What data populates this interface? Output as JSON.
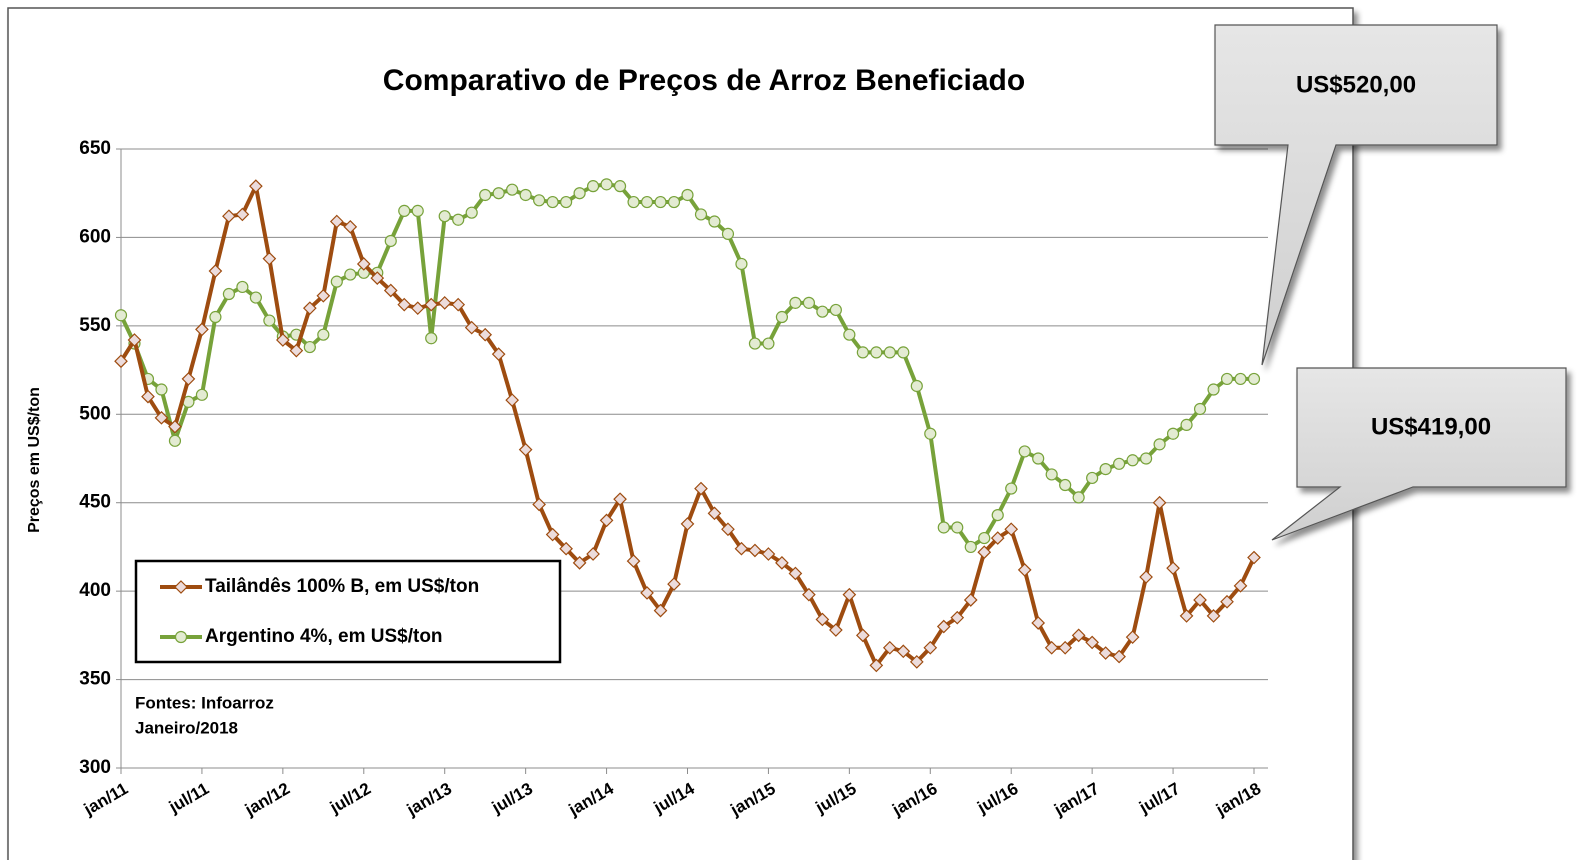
{
  "chart_data": {
    "type": "line",
    "title": "Comparativo de Preços de  Arroz Beneficiado",
    "y_label": "Preços em US$/ton",
    "categories": [
      "jan/11",
      null,
      null,
      null,
      null,
      null,
      "jul/11",
      null,
      null,
      null,
      null,
      null,
      "jan/12",
      null,
      null,
      null,
      null,
      null,
      "jul/12",
      null,
      null,
      null,
      null,
      null,
      "jan/13",
      null,
      null,
      null,
      null,
      null,
      "jul/13",
      null,
      null,
      null,
      null,
      null,
      "jan/14",
      null,
      null,
      null,
      null,
      null,
      "jul/14",
      null,
      null,
      null,
      null,
      null,
      "jan/15",
      null,
      null,
      null,
      null,
      null,
      "jul/15",
      null,
      null,
      null,
      null,
      null,
      "jan/16",
      null,
      null,
      null,
      null,
      null,
      "jul/16",
      null,
      null,
      null,
      null,
      null,
      "jan/17",
      null,
      null,
      null,
      null,
      null,
      "jul/17",
      null,
      null,
      null,
      null,
      null,
      "jan/18"
    ],
    "series": [
      {
        "name": "Tailândês 100% B, em US$/ton",
        "color": "#9e4c10",
        "marker": "diamond",
        "values": [
          530,
          542,
          510,
          498,
          493,
          520,
          548,
          581,
          612,
          613,
          629,
          588,
          542,
          536,
          560,
          567,
          609,
          606,
          585,
          577,
          570,
          562,
          560,
          562,
          563,
          562,
          549,
          545,
          534,
          508,
          480,
          449,
          432,
          424,
          416,
          421,
          440,
          452,
          417,
          399,
          389,
          404,
          438,
          458,
          444,
          435,
          424,
          423,
          421,
          416,
          410,
          398,
          384,
          378,
          398,
          375,
          358,
          368,
          366,
          360,
          368,
          380,
          385,
          395,
          422,
          430,
          435,
          412,
          382,
          368,
          368,
          375,
          371,
          365,
          363,
          374,
          408,
          450,
          413,
          386,
          395,
          386,
          394,
          403,
          419
        ]
      },
      {
        "name": "Argentino 4%, em US$/ton",
        "color": "#77a23a",
        "marker": "circle",
        "values": [
          556,
          540,
          520,
          514,
          485,
          507,
          511,
          555,
          568,
          572,
          566,
          553,
          544,
          545,
          538,
          545,
          575,
          579,
          580,
          580,
          598,
          615,
          615,
          543,
          612,
          610,
          614,
          624,
          625,
          627,
          624,
          621,
          620,
          620,
          625,
          629,
          630,
          629,
          620,
          620,
          620,
          620,
          624,
          613,
          609,
          602,
          585,
          540,
          540,
          555,
          563,
          563,
          558,
          559,
          545,
          535,
          535,
          535,
          535,
          516,
          489,
          436,
          436,
          425,
          430,
          443,
          458,
          479,
          475,
          466,
          460,
          453,
          464,
          469,
          472,
          474,
          475,
          483,
          489,
          494,
          503,
          514,
          520,
          520,
          520
        ]
      }
    ],
    "ylim": [
      300,
      650
    ],
    "yticks": [
      300,
      350,
      400,
      450,
      500,
      550,
      600,
      650
    ],
    "grid": true,
    "legend": "lower left",
    "source": [
      "Fontes: Infoarroz",
      "Janeiro/2018"
    ],
    "annotations": [
      "US$520,00",
      "US$419,00"
    ]
  }
}
